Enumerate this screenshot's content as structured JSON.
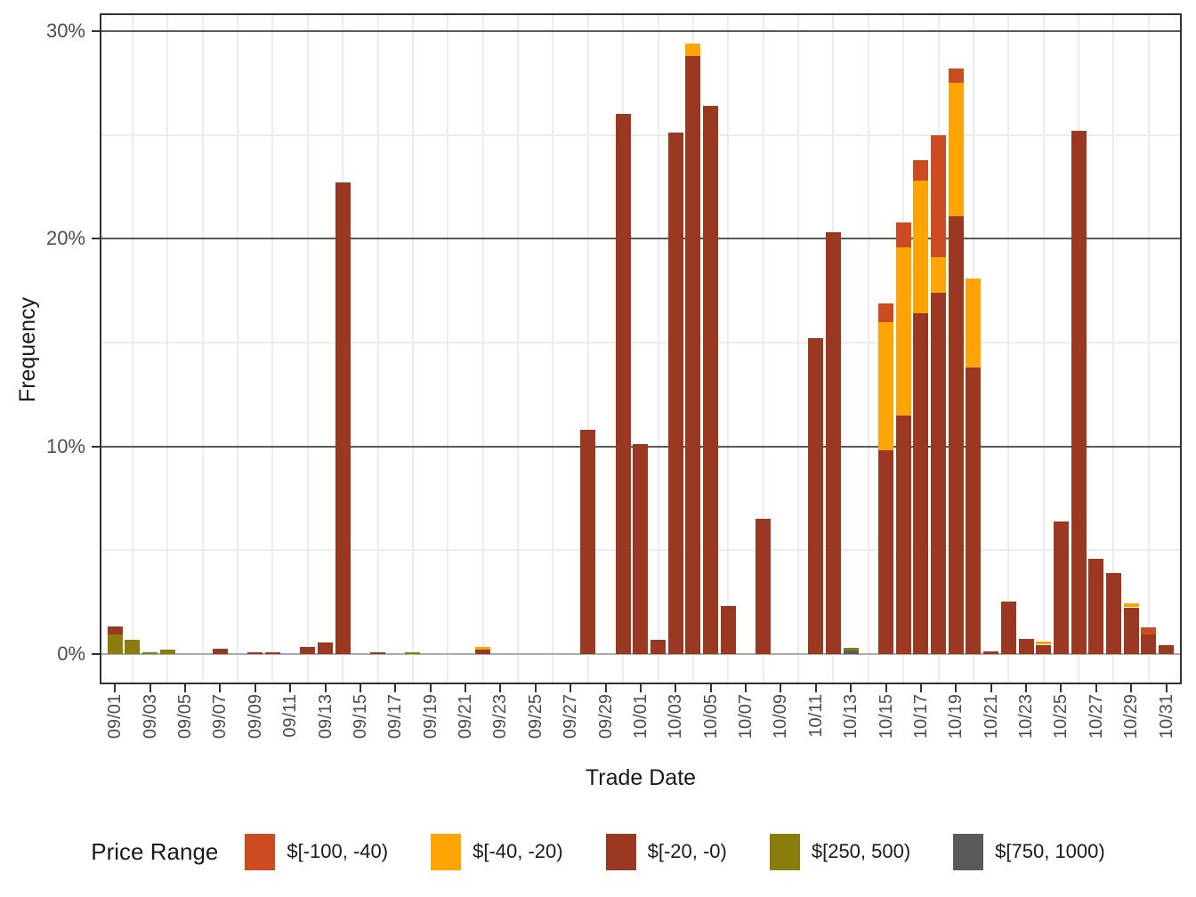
{
  "figure": {
    "background": "#FFFFFF",
    "panel_border_color": "#333333",
    "grid": {
      "major_color": "#595959",
      "minor_color": "#ECECEC",
      "zero_line_color": "#ABABAB"
    },
    "tick_text_color": "#4D4D4D",
    "title_text_color": "#1A1A1A"
  },
  "legend": {
    "title": "Price Range",
    "items": [
      {
        "label": "$[-100, -40)",
        "color": "#CC4B20"
      },
      {
        "label": "$[-40, -20)",
        "color": "#FFA405"
      },
      {
        "label": "$[-20, -0)",
        "color": "#9B3822"
      },
      {
        "label": "$[250, 500)",
        "color": "#8A7D0D"
      },
      {
        "label": "$[750, 1000)",
        "color": "#5A5A5A"
      }
    ]
  },
  "chart_data": {
    "type": "bar",
    "stacked": true,
    "title": "",
    "xlabel": "Trade Date",
    "ylabel": "Frequency",
    "y_unit": "%",
    "ylim": [
      0,
      30.9
    ],
    "grid": "on",
    "legend_position": "bottom",
    "y_major_ticks": [
      0,
      10,
      20,
      30
    ],
    "y_tick_labels": [
      "0%",
      "10%",
      "20%",
      "30%"
    ],
    "y_minor_ticks": [
      5,
      15,
      25
    ],
    "x_days": 61,
    "x_first_day": "09/01",
    "x_tick_every_days": 2,
    "x_tick_labels": [
      "09/01",
      "09/03",
      "09/05",
      "09/07",
      "09/09",
      "09/11",
      "09/13",
      "09/15",
      "09/17",
      "09/19",
      "09/21",
      "09/23",
      "09/25",
      "09/27",
      "09/29",
      "10/01",
      "10/03",
      "10/05",
      "10/07",
      "10/09",
      "10/11",
      "10/13",
      "10/15",
      "10/17",
      "10/19",
      "10/21",
      "10/23",
      "10/25",
      "10/27",
      "10/29",
      "10/31"
    ],
    "stack_order_bottom_to_top": [
      "$[750, 1000)",
      "$[250, 500)",
      "$[-20, -0)",
      "$[-40, -20)",
      "$[-100, -40)"
    ],
    "bars": [
      {
        "date": "09/01",
        "day": 0,
        "stack": {
          "$[250, 500)": 0.95,
          "$[-20, -0)": 0.4
        }
      },
      {
        "date": "09/02",
        "day": 1,
        "stack": {
          "$[250, 500)": 0.7
        }
      },
      {
        "date": "09/03",
        "day": 2,
        "stack": {
          "$[250, 500)": 0.07
        }
      },
      {
        "date": "09/04",
        "day": 3,
        "stack": {
          "$[250, 500)": 0.2
        }
      },
      {
        "date": "09/07",
        "day": 6,
        "stack": {
          "$[-20, -0)": 0.25
        }
      },
      {
        "date": "09/09",
        "day": 8,
        "stack": {
          "$[-20, -0)": 0.1
        }
      },
      {
        "date": "09/10",
        "day": 9,
        "stack": {
          "$[-20, -0)": 0.1
        }
      },
      {
        "date": "09/12",
        "day": 11,
        "stack": {
          "$[-20, -0)": 0.35
        }
      },
      {
        "date": "09/13",
        "day": 12,
        "stack": {
          "$[-20, -0)": 0.55
        }
      },
      {
        "date": "09/14",
        "day": 13,
        "stack": {
          "$[-20, -0)": 22.7
        }
      },
      {
        "date": "09/16",
        "day": 15,
        "stack": {
          "$[-20, -0)": 0.1
        }
      },
      {
        "date": "09/18",
        "day": 17,
        "stack": {
          "$[250, 500)": 0.08
        }
      },
      {
        "date": "09/22",
        "day": 21,
        "stack": {
          "$[-20, -0)": 0.2,
          "$[-40, -20)": 0.13
        }
      },
      {
        "date": "09/28",
        "day": 27,
        "stack": {
          "$[-20, -0)": 10.8
        }
      },
      {
        "date": "09/30",
        "day": 29,
        "stack": {
          "$[-20, -0)": 26.0
        }
      },
      {
        "date": "10/01",
        "day": 30,
        "stack": {
          "$[-20, -0)": 10.1
        }
      },
      {
        "date": "10/02",
        "day": 31,
        "stack": {
          "$[-20, -0)": 0.7
        }
      },
      {
        "date": "10/03",
        "day": 32,
        "stack": {
          "$[-20, -0)": 25.1
        }
      },
      {
        "date": "10/04",
        "day": 33,
        "stack": {
          "$[-20, -0)": 28.8,
          "$[-40, -20)": 0.6
        }
      },
      {
        "date": "10/05",
        "day": 34,
        "stack": {
          "$[-20, -0)": 26.4
        }
      },
      {
        "date": "10/06",
        "day": 35,
        "stack": {
          "$[-20, -0)": 2.3
        }
      },
      {
        "date": "10/08",
        "day": 37,
        "stack": {
          "$[-20, -0)": 6.5
        }
      },
      {
        "date": "10/11",
        "day": 40,
        "stack": {
          "$[-20, -0)": 15.2
        }
      },
      {
        "date": "10/12",
        "day": 41,
        "stack": {
          "$[-20, -0)": 20.3
        }
      },
      {
        "date": "10/13",
        "day": 42,
        "stack": {
          "$[750, 1000)": 0.18,
          "$[250, 500)": 0.1
        }
      },
      {
        "date": "10/15",
        "day": 44,
        "stack": {
          "$[-20, -0)": 9.8,
          "$[-40, -20)": 6.2,
          "$[-100, -40)": 0.9
        }
      },
      {
        "date": "10/16",
        "day": 45,
        "stack": {
          "$[-20, -0)": 11.5,
          "$[-40, -20)": 8.1,
          "$[-100, -40)": 1.2
        }
      },
      {
        "date": "10/17",
        "day": 46,
        "stack": {
          "$[-20, -0)": 16.4,
          "$[-40, -20)": 6.4,
          "$[-100, -40)": 1.0
        }
      },
      {
        "date": "10/18",
        "day": 47,
        "stack": {
          "$[-20, -0)": 17.4,
          "$[-40, -20)": 1.7,
          "$[-100, -40)": 5.9
        }
      },
      {
        "date": "10/19",
        "day": 48,
        "stack": {
          "$[-20, -0)": 21.1,
          "$[-40, -20)": 6.4,
          "$[-100, -40)": 0.7
        }
      },
      {
        "date": "10/20",
        "day": 49,
        "stack": {
          "$[-20, -0)": 13.8,
          "$[-40, -20)": 4.3
        }
      },
      {
        "date": "10/21",
        "day": 50,
        "stack": {
          "$[-20, -0)": 0.15
        }
      },
      {
        "date": "10/22",
        "day": 51,
        "stack": {
          "$[-20, -0)": 2.55
        }
      },
      {
        "date": "10/23",
        "day": 52,
        "stack": {
          "$[-20, -0)": 0.75
        }
      },
      {
        "date": "10/24",
        "day": 53,
        "stack": {
          "$[-20, -0)": 0.45,
          "$[-40, -20)": 0.15
        }
      },
      {
        "date": "10/25",
        "day": 54,
        "stack": {
          "$[-20, -0)": 6.4
        }
      },
      {
        "date": "10/26",
        "day": 55,
        "stack": {
          "$[-20, -0)": 25.2
        }
      },
      {
        "date": "10/27",
        "day": 56,
        "stack": {
          "$[-20, -0)": 4.6
        }
      },
      {
        "date": "10/28",
        "day": 57,
        "stack": {
          "$[-20, -0)": 3.9
        }
      },
      {
        "date": "10/29",
        "day": 58,
        "stack": {
          "$[-20, -0)": 2.25,
          "$[-40, -20)": 0.2
        }
      },
      {
        "date": "10/30",
        "day": 59,
        "stack": {
          "$[-20, -0)": 0.95,
          "$[-100, -40)": 0.35
        }
      },
      {
        "date": "10/31",
        "day": 60,
        "stack": {
          "$[-20, -0)": 0.45
        }
      }
    ]
  }
}
